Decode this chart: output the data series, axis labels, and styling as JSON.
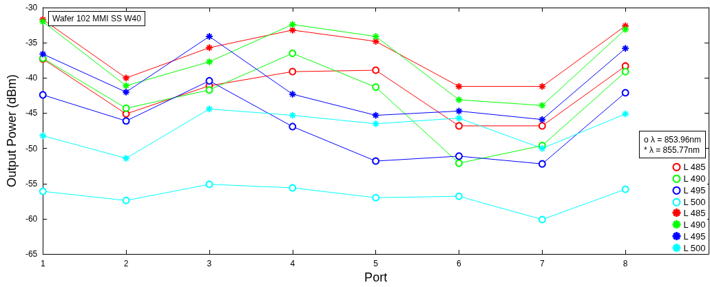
{
  "chart_data": {
    "type": "line",
    "xlabel": "Port",
    "ylabel": "Output Power (dBm)",
    "annotations": [
      "Wafer 102 MMI SS W40",
      "o λ = 853.96nm",
      "* λ = 855.77nm"
    ],
    "x": [
      1,
      2,
      3,
      4,
      5,
      6,
      7,
      8
    ],
    "xlim": [
      1,
      9
    ],
    "xticks": [
      1,
      2,
      3,
      4,
      5,
      6,
      7,
      8
    ],
    "ylim": [
      -65,
      -30
    ],
    "yticks": [
      -65,
      -60,
      -55,
      -50,
      -45,
      -40,
      -35,
      -30
    ],
    "grid": false,
    "legend": "bottom right",
    "line_style": "solid",
    "series": [
      {
        "name": "L 485",
        "color": "#ff0000",
        "marker": "circle",
        "values": [
          -37.3,
          -45.1,
          -41.1,
          -39.1,
          -38.9,
          -46.8,
          -46.8,
          -38.3
        ]
      },
      {
        "name": "L 490",
        "color": "#00ff00",
        "marker": "circle",
        "values": [
          -37.2,
          -44.3,
          -41.7,
          -36.5,
          -41.3,
          -52.1,
          -49.6,
          -39.1
        ]
      },
      {
        "name": "L 495",
        "color": "#0000ff",
        "marker": "circle",
        "values": [
          -42.4,
          -46.1,
          -40.4,
          -46.9,
          -51.8,
          -51.1,
          -52.2,
          -42.1
        ]
      },
      {
        "name": "L 500",
        "color": "#00ffff",
        "marker": "circle",
        "values": [
          -56.1,
          -57.4,
          -55.1,
          -55.6,
          -57.0,
          -56.8,
          -60.1,
          -55.8
        ]
      },
      {
        "name": "L 485",
        "color": "#ff0000",
        "marker": "star",
        "values": [
          -31.7,
          -40.0,
          -35.7,
          -33.2,
          -34.8,
          -41.2,
          -41.2,
          -32.6
        ]
      },
      {
        "name": "L 490",
        "color": "#00ff00",
        "marker": "star",
        "values": [
          -32.0,
          -41.1,
          -37.7,
          -32.4,
          -34.1,
          -43.1,
          -43.9,
          -33.1
        ]
      },
      {
        "name": "L 495",
        "color": "#0000ff",
        "marker": "star",
        "values": [
          -36.6,
          -42.0,
          -34.1,
          -42.3,
          -45.3,
          -44.7,
          -45.9,
          -35.8
        ]
      },
      {
        "name": "L 500",
        "color": "#00ffff",
        "marker": "star",
        "values": [
          -48.2,
          -51.4,
          -44.4,
          -45.3,
          -46.5,
          -45.7,
          -50.0,
          -45.1
        ]
      }
    ]
  }
}
